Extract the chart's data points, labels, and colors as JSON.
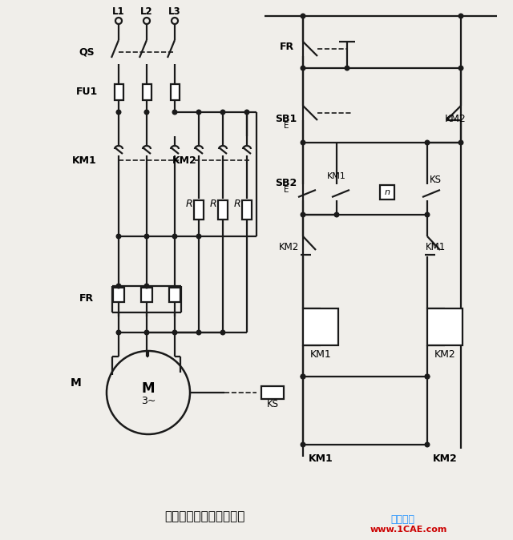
{
  "title": "单向反接制动的控制线路",
  "wm1": "仿真在线",
  "wm2": "www.1CAE.com",
  "wm1_color": "#1e90ff",
  "wm2_color": "#cc0000",
  "bg": "#f0eeea",
  "lc": "#1a1a1a",
  "lw": 1.6
}
